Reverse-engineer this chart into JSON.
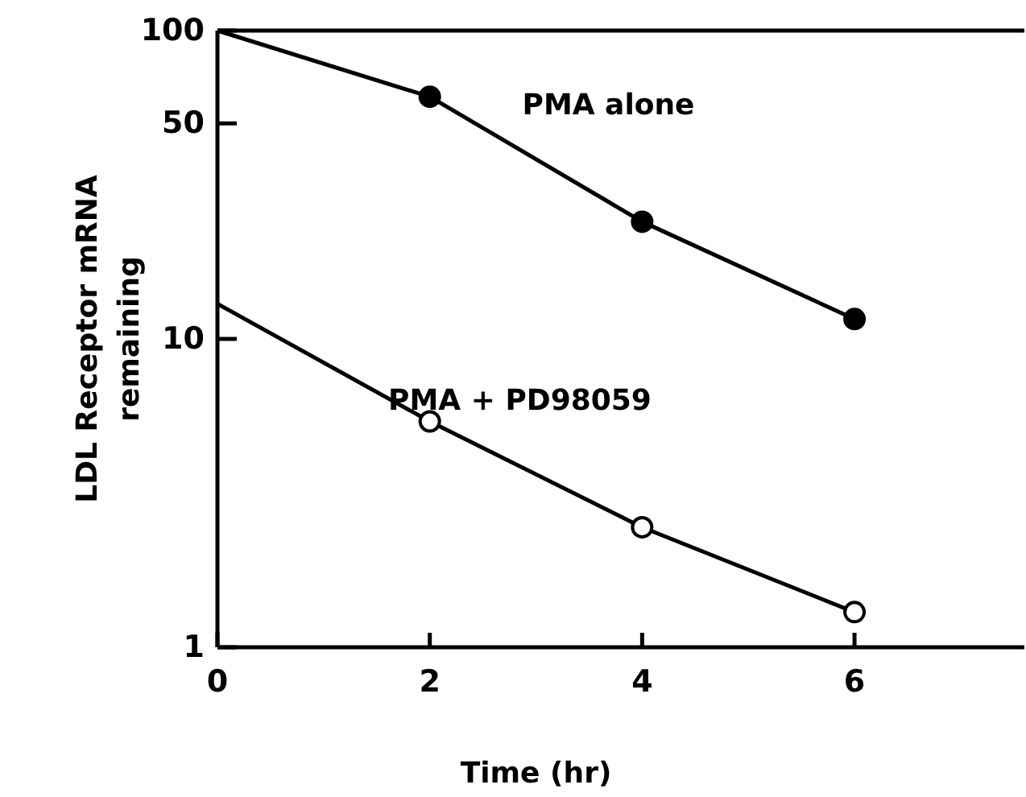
{
  "chart_data": {
    "type": "line",
    "xlabel": "Time (hr)",
    "ylabel": "LDL Receptor mRNA remaining",
    "x": [
      0,
      2,
      4,
      6
    ],
    "series": [
      {
        "name": "PMA alone",
        "color": "#000000",
        "values": [
          100,
          61,
          24,
          11.6
        ]
      },
      {
        "name": "PMA + PD98059",
        "color": "#ffffff",
        "values": [
          13,
          5.4,
          2.45,
          1.3
        ]
      }
    ],
    "xlim": [
      0,
      7.6
    ],
    "xticks": [
      0,
      2,
      4,
      6
    ],
    "ylim": [
      1,
      100
    ],
    "yticks": [
      1,
      10,
      50,
      100
    ],
    "log": true,
    "marker": "circle",
    "line_style": "solid",
    "grid": false
  }
}
